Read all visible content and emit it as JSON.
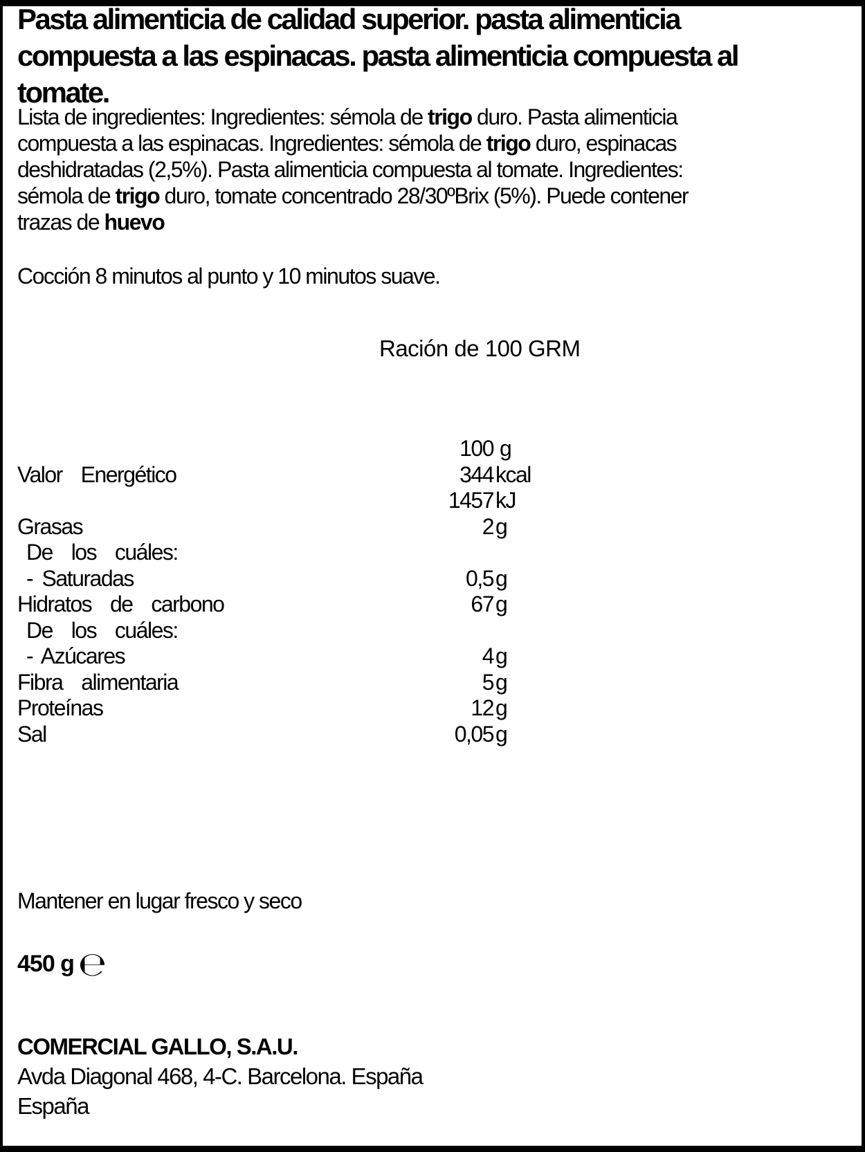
{
  "label": {
    "title": "Pasta alimenticia de calidad superior. pasta alimenticia\ncompuesta a las espinacas. pasta alimenticia compuesta al\ntomate.",
    "ingredients": {
      "segments": [
        {
          "text": "Lista de ingredientes: Ingredientes: sémola de ",
          "bold": false
        },
        {
          "text": "trigo",
          "bold": true
        },
        {
          "text": " duro. Pasta alimenticia\ncompuesta a las espinacas. Ingredientes: sémola de ",
          "bold": false
        },
        {
          "text": "trigo",
          "bold": true
        },
        {
          "text": " duro, espinacas\ndeshidratadas (2,5%). Pasta alimenticia compuesta al tomate. Ingredientes:\nsémola de ",
          "bold": false
        },
        {
          "text": "trigo",
          "bold": true
        },
        {
          "text": " duro, tomate concentrado 28/30ºBrix (5%). Puede contener\ntrazas de ",
          "bold": false
        },
        {
          "text": "huevo",
          "bold": true
        }
      ]
    },
    "cooking": "Cocción 8 minutos al punto y 10 minutos suave.",
    "serving_heading": "Ración de 100 GRM",
    "nutrition": {
      "header": {
        "num": "100",
        "unit": "g"
      },
      "rows": [
        {
          "label": "Valor  Energético",
          "num": "344",
          "unit": "kcal"
        },
        {
          "label": "",
          "num": "1457",
          "unit": "kJ"
        },
        {
          "label": "Grasas",
          "num": "2",
          "unit": "g"
        },
        {
          "label": "De  los  cuáles:",
          "num": "",
          "unit": ""
        },
        {
          "label": "- Saturadas",
          "num": "0,5",
          "unit": "g"
        },
        {
          "label": "Hidratos  de  carbono",
          "num": "67",
          "unit": "g"
        },
        {
          "label": "De  los  cuáles:",
          "num": "",
          "unit": ""
        },
        {
          "label": "- Azúcares",
          "num": "4",
          "unit": "g"
        },
        {
          "label": "Fibra  alimentaria",
          "num": "5",
          "unit": "g"
        },
        {
          "label": "Proteínas",
          "num": "12",
          "unit": "g"
        },
        {
          "label": "Sal",
          "num": "0,05",
          "unit": "g"
        }
      ]
    },
    "storage": "Mantener en lugar fresco y seco",
    "net_weight": "450 g",
    "estimated_sign": "℮",
    "manufacturer": "COMERCIAL GALLO, S.A.U.",
    "address": "Avda Diagonal 468, 4-C. Barcelona. España",
    "country": "España"
  }
}
